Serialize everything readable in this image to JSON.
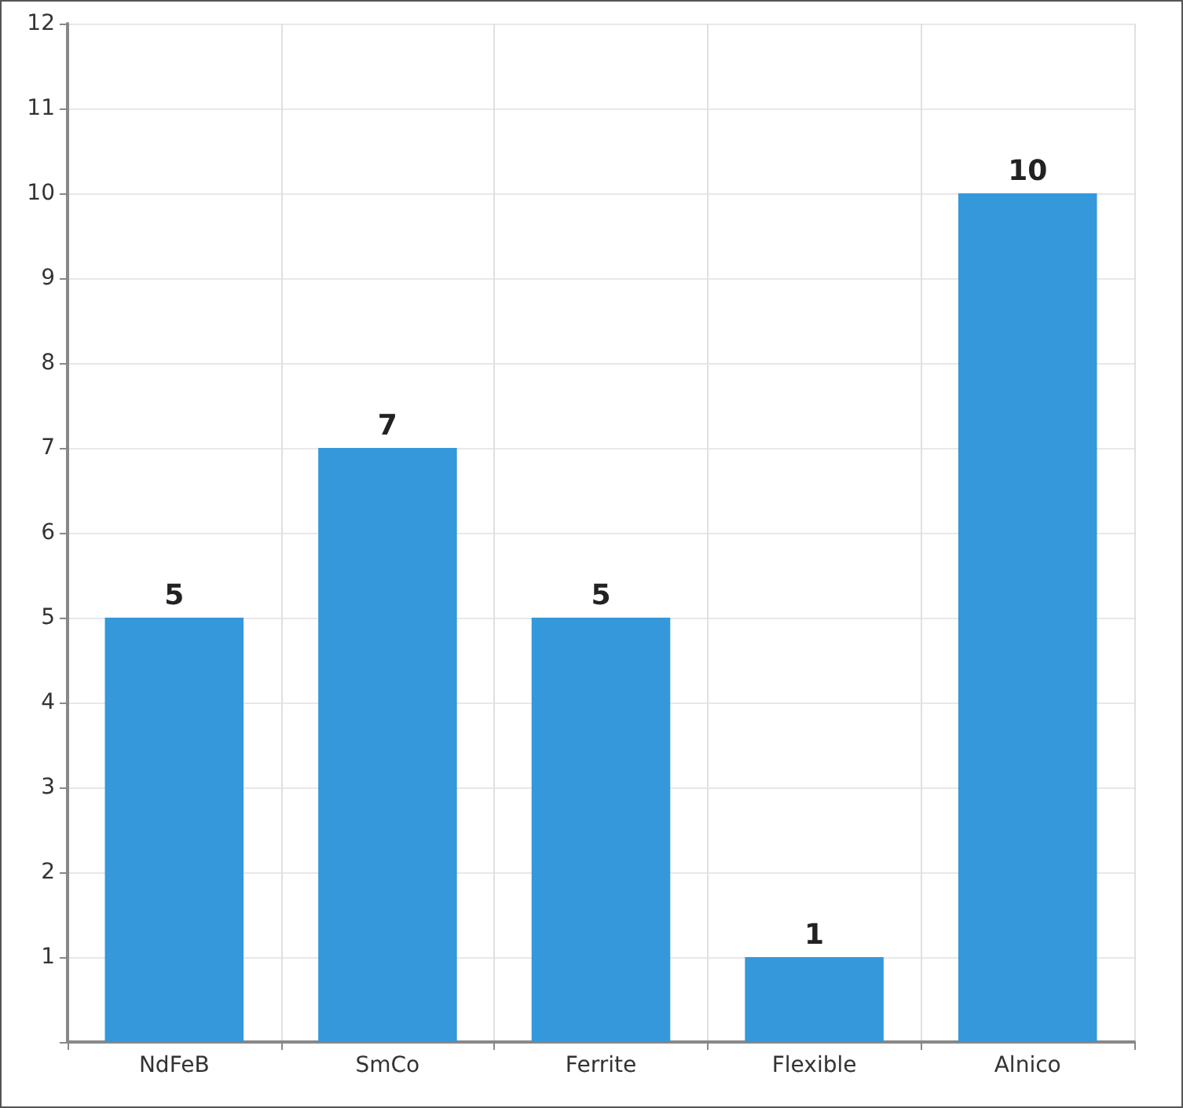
{
  "chart_data": {
    "type": "bar",
    "categories": [
      "NdFeB",
      "SmCo",
      "Ferrite",
      "Flexible",
      "Alnico"
    ],
    "values": [
      5,
      7,
      5,
      1,
      10
    ],
    "color": "#3498db",
    "data_labels": true,
    "ylim": [
      0,
      12
    ],
    "yticks": [
      {
        "value": 0,
        "label": null
      },
      1,
      2,
      3,
      4,
      5,
      6,
      7,
      8,
      9,
      10,
      11,
      12
    ],
    "grid": true
  }
}
